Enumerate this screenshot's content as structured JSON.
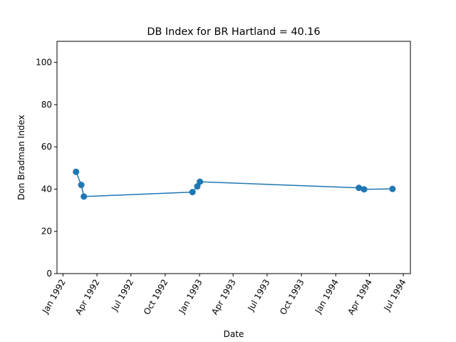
{
  "chart_data": {
    "type": "line",
    "title": "DB Index for BR Hartland = 40.16",
    "xlabel": "Date",
    "ylabel": "Don Bradman Index",
    "ylim": [
      0,
      110
    ],
    "yticks": [
      0,
      20,
      40,
      60,
      80,
      100
    ],
    "xlim": [
      "1991-12-16",
      "1994-07-20"
    ],
    "xticks": [
      {
        "date": "1992-01-01",
        "label": "Jan 1992"
      },
      {
        "date": "1992-04-01",
        "label": "Apr 1992"
      },
      {
        "date": "1992-07-01",
        "label": "Jul 1992"
      },
      {
        "date": "1992-10-01",
        "label": "Oct 1992"
      },
      {
        "date": "1993-01-01",
        "label": "Jan 1993"
      },
      {
        "date": "1993-04-01",
        "label": "Apr 1993"
      },
      {
        "date": "1993-07-01",
        "label": "Jul 1993"
      },
      {
        "date": "1993-10-01",
        "label": "Oct 1993"
      },
      {
        "date": "1994-01-01",
        "label": "Jan 1994"
      },
      {
        "date": "1994-04-01",
        "label": "Apr 1994"
      },
      {
        "date": "1994-07-01",
        "label": "Jul 1994"
      }
    ],
    "grid": false,
    "color": "#1f77b4",
    "x": [
      "1992-02-05",
      "1992-02-19",
      "1992-02-26",
      "1992-12-13",
      "1992-12-26",
      "1993-01-02",
      "1994-03-04",
      "1994-03-18",
      "1994-06-02"
    ],
    "y": [
      48.2,
      42.0,
      36.5,
      38.6,
      41.3,
      43.5,
      40.6,
      39.9,
      40.1
    ]
  }
}
